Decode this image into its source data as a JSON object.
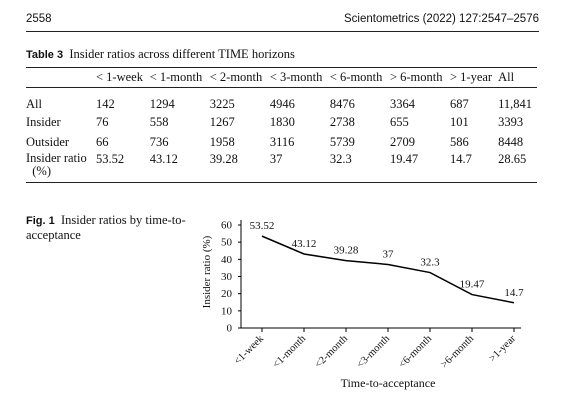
{
  "header": {
    "page_number": "2558",
    "journal": "Scientometrics (2022) 127:2547–2576"
  },
  "table": {
    "label": "Table 3",
    "caption": "Insider ratios across different TIME horizons",
    "columns": [
      "",
      "< 1-week",
      "< 1-month",
      "< 2-month",
      "< 3-month",
      "< 6-month",
      "> 6-month",
      "> 1-year",
      "All"
    ],
    "rows": [
      {
        "label": "All",
        "values": [
          "142",
          "1294",
          "3225",
          "4946",
          "8476",
          "3364",
          "687",
          "11,841"
        ]
      },
      {
        "label": "Insider",
        "values": [
          "76",
          "558",
          "1267",
          "1830",
          "2738",
          "655",
          "101",
          "3393"
        ]
      },
      {
        "label": "Outsider",
        "values": [
          "66",
          "736",
          "1958",
          "3116",
          "5739",
          "2709",
          "586",
          "8448"
        ]
      },
      {
        "label": "Insider ratio",
        "label2": "(%)",
        "values": [
          "53.52",
          "43.12",
          "39.28",
          "37",
          "32.3",
          "19.47",
          "14.7",
          "28.65"
        ]
      }
    ]
  },
  "figure": {
    "label": "Fig. 1",
    "caption": "Insider ratios by time-to-acceptance"
  },
  "chart_data": {
    "type": "line",
    "categories": [
      "<1-week",
      "<1-month",
      "<2-month",
      "<3-month",
      "<6-month",
      ">6-month",
      ">1-year"
    ],
    "values": [
      53.52,
      43.12,
      39.28,
      37,
      32.3,
      19.47,
      14.7
    ],
    "data_labels": [
      "53.52",
      "43.12",
      "39.28",
      "37",
      "32.3",
      "19.47",
      "14.7"
    ],
    "xlabel": "Time-to-acceptance",
    "ylabel": "Insider ratio (%)",
    "ylim": [
      0,
      60
    ],
    "yticks": [
      0,
      10,
      20,
      30,
      40,
      50,
      60
    ],
    "grid": false,
    "line_color": "#000000"
  }
}
